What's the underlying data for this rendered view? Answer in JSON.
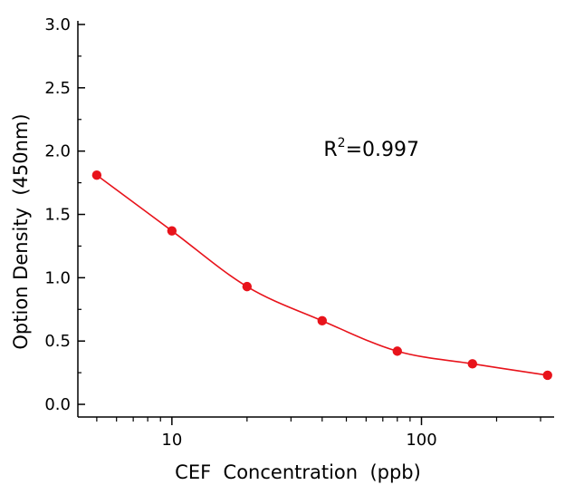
{
  "chart_data": {
    "type": "scatter",
    "xlabel": "CEF  Concentration  (ppb)",
    "ylabel": "Option Density  (450nm)",
    "x_scale": "log",
    "xlim": [
      4.2,
      340
    ],
    "ylim": [
      -0.1,
      3.0
    ],
    "x_ticks": [
      10,
      100
    ],
    "x_tick_labels": [
      "10",
      "100"
    ],
    "y_ticks": [
      0.0,
      0.5,
      1.0,
      1.5,
      2.0,
      2.5,
      3.0
    ],
    "y_tick_labels": [
      "0.0",
      "0.5",
      "1.0",
      "1.5",
      "2.0",
      "2.5",
      "3.0"
    ],
    "grid": false,
    "series": [
      {
        "x": [
          5,
          10,
          20,
          40,
          80,
          160,
          320
        ],
        "y": [
          1.81,
          1.37,
          0.93,
          0.66,
          0.42,
          0.32,
          0.23
        ],
        "marker_color": "#e8131b",
        "fit_curve": true,
        "fit_color": "#e8131b"
      }
    ],
    "annotations": [
      {
        "text_main": "R",
        "text_sup": "2",
        "text_rest": "=0.997",
        "x": 60,
        "y": 2.02
      }
    ]
  }
}
